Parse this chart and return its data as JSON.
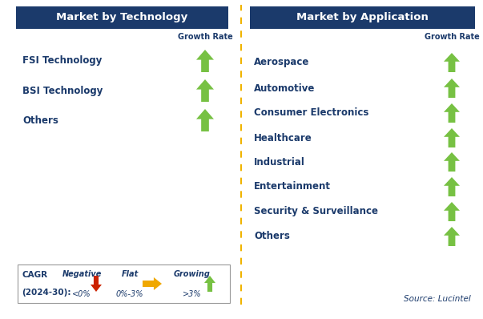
{
  "left_title": "Market by Technology",
  "right_title": "Market by Application",
  "left_items": [
    "FSI Technology",
    "BSI Technology",
    "Others"
  ],
  "right_items": [
    "Aerospace",
    "Automotive",
    "Consumer Electronics",
    "Healthcare",
    "Industrial",
    "Entertainment",
    "Security & Surveillance",
    "Others"
  ],
  "header_bg": "#1b3a6b",
  "header_fg": "#ffffff",
  "text_color": "#1b3a6b",
  "growth_rate_label": "Growth Rate",
  "dashed_line_color": "#f0b400",
  "legend_cagr_line1": "CAGR",
  "legend_cagr_line2": "(2024-30):",
  "legend_negative_label": "Negative",
  "legend_negative_value": "<0%",
  "legend_flat_label": "Flat",
  "legend_flat_value": "0%-3%",
  "legend_growing_label": "Growing",
  "legend_growing_value": ">3%",
  "source_text": "Source: Lucintel",
  "green_color": "#77c143",
  "red_color": "#cc2200",
  "yellow_color": "#f0a800",
  "bg_color": "#ffffff",
  "fig_width": 6.03,
  "fig_height": 3.98,
  "dpi": 100
}
